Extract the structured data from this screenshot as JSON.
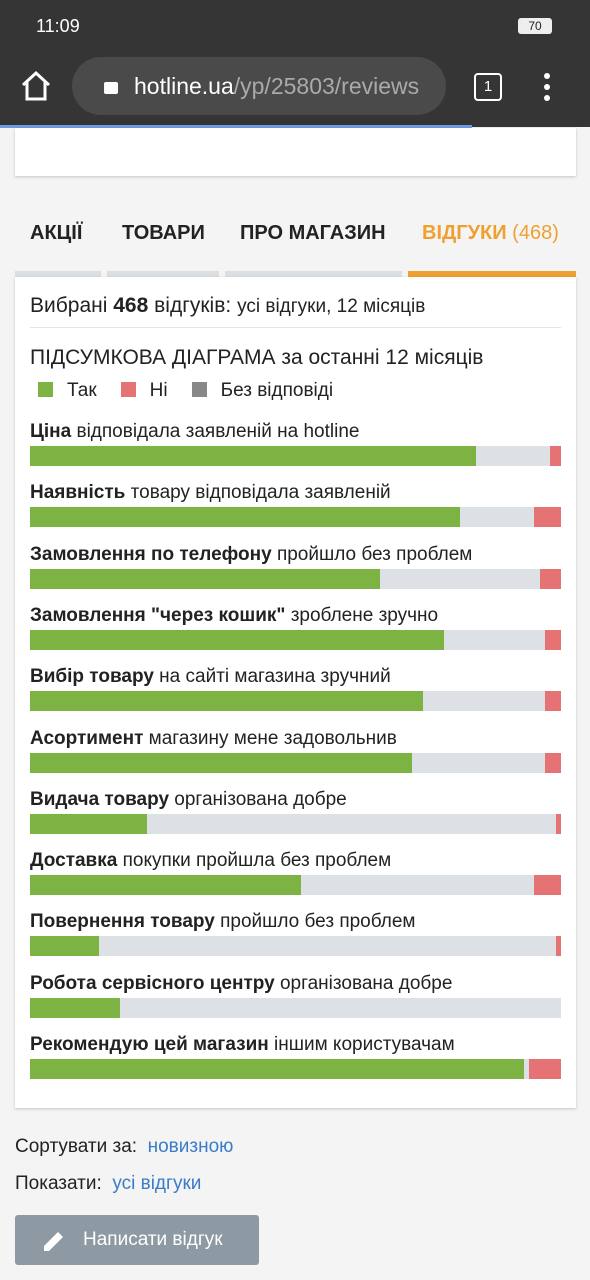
{
  "status_bar": {
    "time": "11:09",
    "battery": "70"
  },
  "browser": {
    "url_host": "hotline.ua",
    "url_path": "/yp/25803/reviews",
    "tab_count": "1"
  },
  "tabs": [
    {
      "label": "АКЦІЇ"
    },
    {
      "label": "ТОВАРИ"
    },
    {
      "label": "ПРО МАГАЗИН"
    },
    {
      "label": "ВІДГУКИ",
      "count": "(468)"
    }
  ],
  "selection": {
    "prefix": "Вибрані",
    "count": "468",
    "suffix": "відгуків:",
    "filter": "усі відгуки, 12 місяців"
  },
  "summary": {
    "title_caps": "ПІДСУМКОВА ДІАГРАМА",
    "title_rest": "за останні 12 місяців",
    "legend": [
      {
        "name": "Так",
        "color": "#7cb342"
      },
      {
        "name": "Ні",
        "color": "#e57373"
      },
      {
        "name": "Без відповіді",
        "color": "#888888"
      }
    ],
    "items": [
      {
        "bold": "Ціна",
        "rest": "відповідала заявленій на hotline",
        "yes": 84,
        "no": 2
      },
      {
        "bold": "Наявність",
        "rest": "товару відповідала заявленій",
        "yes": 81,
        "no": 5
      },
      {
        "bold": "Замовлення по телефону",
        "rest": "пройшло без проблем",
        "yes": 66,
        "no": 4
      },
      {
        "bold": "Замовлення \"через кошик\"",
        "rest": "зроблене зручно",
        "yes": 78,
        "no": 3
      },
      {
        "bold": "Вибір товару",
        "rest": "на сайті магазина зручний",
        "yes": 74,
        "no": 3
      },
      {
        "bold": "Асортимент",
        "rest": "магазину мене задовольнив",
        "yes": 72,
        "no": 3
      },
      {
        "bold": "Видача товару",
        "rest": "організована добре",
        "yes": 22,
        "no": 1
      },
      {
        "bold": "Доставка",
        "rest": "покупки пройшла без проблем",
        "yes": 51,
        "no": 5
      },
      {
        "bold": "Повернення товару",
        "rest": "пройшло без проблем",
        "yes": 13,
        "no": 1
      },
      {
        "bold": "Робота сервісного центру",
        "rest": "організована добре",
        "yes": 17,
        "no": 0
      },
      {
        "bold": "Рекомендую цей магазин",
        "rest": "іншим користувачам",
        "yes": 93,
        "no": 6
      }
    ]
  },
  "sort": {
    "label": "Сортувати за:",
    "value": "новизною"
  },
  "show": {
    "label": "Показати:",
    "value": "усі відгуки"
  },
  "button": {
    "label": "Написати відгук"
  }
}
